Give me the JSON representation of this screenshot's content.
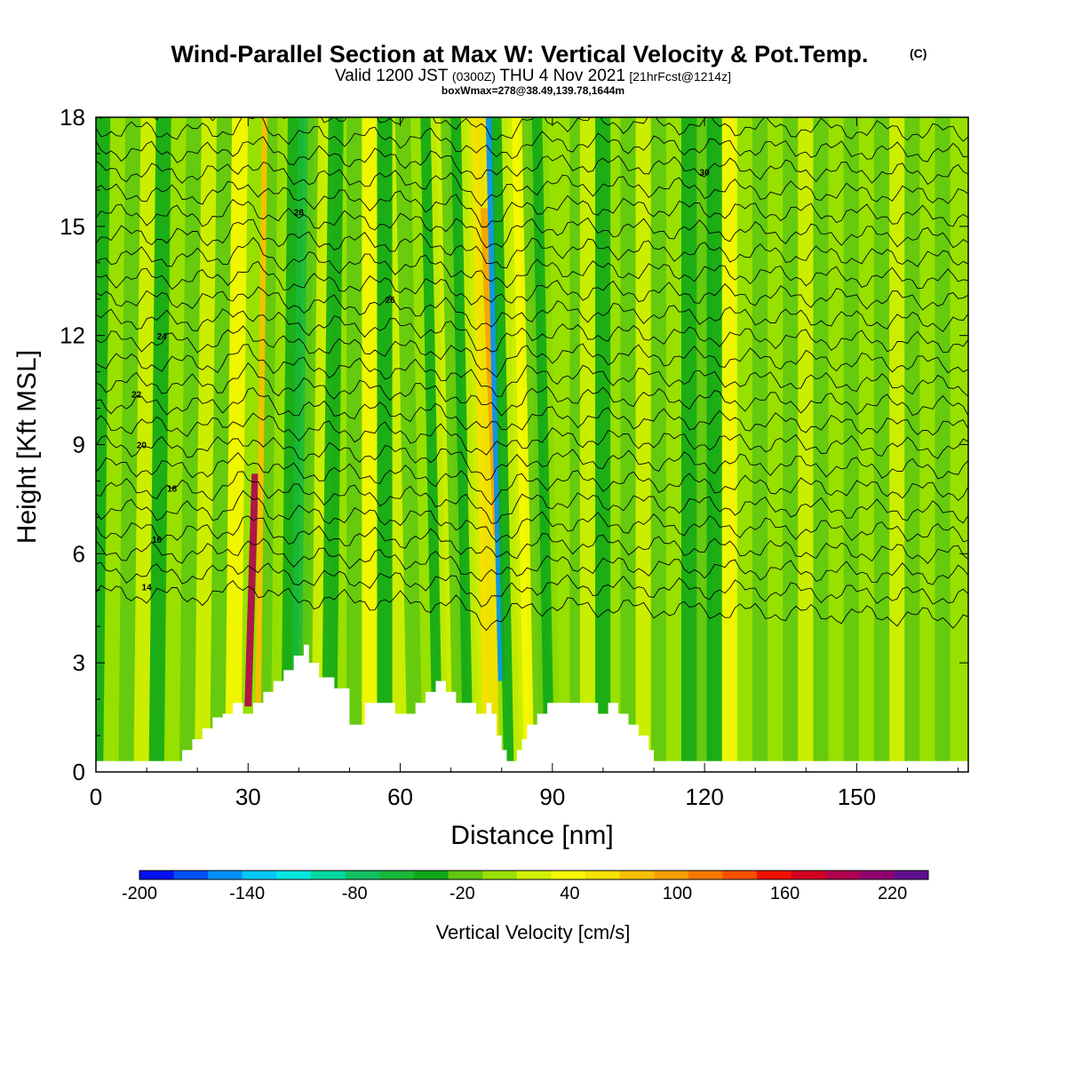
{
  "title": {
    "main": "Wind-Parallel Section at Max W: Vertical Velocity & Pot.Temp.",
    "main_mark": "(C)",
    "valid_prefix": "Valid 1200 JST",
    "valid_z": "(0300Z)",
    "valid_date": "THU 4 Nov 2021",
    "valid_fcst": "[21hrFcst@1214z]",
    "box_line": "boxWmax=278@38.49,139.78,1644m"
  },
  "chart_data": {
    "type": "heatmap",
    "title": "Wind-Parallel Section at Max W: Vertical Velocity & Pot.Temp. (C)",
    "xlabel": "Distance [nm]",
    "ylabel": "Height [Kft MSL]",
    "xlim": [
      0,
      172
    ],
    "ylim": [
      0,
      18
    ],
    "x_ticks": [
      0,
      30,
      60,
      90,
      120,
      150
    ],
    "y_ticks": [
      0,
      3,
      6,
      9,
      12,
      15,
      18
    ],
    "x_tick_labels": [
      "0",
      "30",
      "60",
      "90",
      "120",
      "150"
    ],
    "y_tick_labels": [
      "0",
      "3",
      "6",
      "9",
      "12",
      "15",
      "18"
    ],
    "colorbar": {
      "label": "Vertical Velocity [cm/s]",
      "levels": [
        -200,
        -180,
        -160,
        -140,
        -120,
        -100,
        -80,
        -60,
        -40,
        -20,
        0,
        20,
        40,
        60,
        80,
        100,
        120,
        140,
        160,
        180,
        200,
        220,
        240
      ],
      "tick_values": [
        -200,
        -140,
        -80,
        -20,
        40,
        100,
        160,
        220
      ],
      "tick_labels": [
        "-200",
        "-140",
        "-80",
        "-20",
        "40",
        "100",
        "160",
        "220"
      ],
      "colors": [
        "#0010f0",
        "#0050f8",
        "#0090f8",
        "#00c8f8",
        "#00e8e0",
        "#00d8a0",
        "#10c060",
        "#18b838",
        "#10a818",
        "#60c810",
        "#98e000",
        "#d0f000",
        "#f8f800",
        "#f8e000",
        "#f8c000",
        "#f8a000",
        "#f87800",
        "#f85000",
        "#f01000",
        "#d00020",
        "#b00050",
        "#900070",
        "#601090"
      ]
    },
    "contour_labels": [
      "14",
      "16",
      "18",
      "20",
      "22",
      "24",
      "26",
      "28",
      "30"
    ],
    "updraft_cores": [
      {
        "x": 30,
        "y_range": [
          2,
          8
        ],
        "value": 200
      },
      {
        "x": 79,
        "y_range": [
          7,
          15
        ],
        "value": 110
      }
    ],
    "downdraft_cores": [
      {
        "x": 80,
        "y_range": [
          3,
          7
        ],
        "value": -150
      },
      {
        "x": 122,
        "y_range": [
          3,
          7
        ],
        "value": -40
      }
    ],
    "terrain_kft": {
      "x": [
        0,
        15,
        17,
        19,
        21,
        23,
        25,
        27,
        29,
        31,
        33,
        35,
        37,
        39,
        41,
        42,
        44,
        47,
        50,
        53,
        56,
        59,
        61,
        63,
        65,
        67,
        69,
        71,
        73,
        75,
        77,
        78,
        79,
        80,
        81,
        82,
        83,
        84,
        85,
        87,
        89,
        91,
        93,
        95,
        97,
        99,
        101,
        103,
        105,
        107,
        109,
        110,
        111,
        172
      ],
      "y": [
        0.3,
        0.3,
        0.6,
        0.9,
        1.2,
        1.5,
        1.6,
        1.9,
        1.6,
        1.9,
        2.2,
        2.5,
        2.8,
        3.2,
        3.5,
        3.0,
        2.6,
        2.3,
        1.3,
        1.9,
        1.9,
        1.6,
        1.6,
        1.9,
        2.2,
        2.5,
        2.2,
        1.9,
        1.9,
        1.6,
        1.9,
        1.6,
        1.0,
        0.6,
        0.3,
        0.3,
        0.6,
        0.9,
        1.3,
        1.6,
        1.9,
        1.9,
        1.9,
        1.9,
        1.9,
        1.6,
        1.9,
        1.6,
        1.3,
        1.0,
        0.6,
        0.3,
        0.3,
        0.3
      ]
    }
  }
}
